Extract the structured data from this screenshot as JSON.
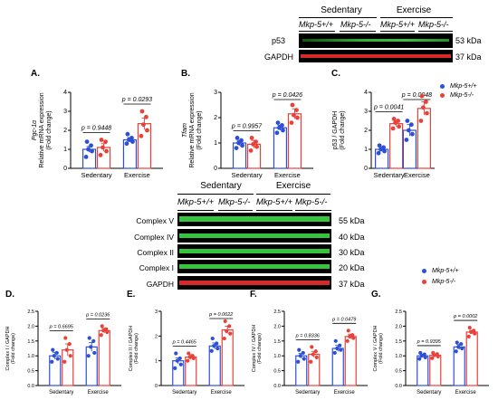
{
  "colors": {
    "sedentary_wt": "#2d4fd6",
    "sedentary_ko": "#e8413a",
    "exercise_wt": "#2d4fd6",
    "exercise_ko": "#e8413a",
    "band_green": "#35c43b",
    "band_red": "#d62a2a"
  },
  "blot_top": {
    "groups": [
      "Sedentary",
      "Exercise"
    ],
    "genotypes": [
      "Mkp-5+/+",
      "Mkp-5-/-",
      "Mkp-5+/+",
      "Mkp-5-/-"
    ],
    "rows": [
      {
        "label": "p53",
        "kda": "53 kDa",
        "color": "green"
      },
      {
        "label": "GAPDH",
        "kda": "37 kDa",
        "color": "red"
      }
    ]
  },
  "blot_mid": {
    "groups": [
      "Sedentary",
      "Exercise"
    ],
    "genotypes": [
      "Mkp-5+/+",
      "Mkp-5-/-",
      "Mkp-5+/+",
      "Mkp-5-/-"
    ],
    "rows": [
      {
        "label": "Complex V",
        "kda": "55 kDa",
        "color": "green"
      },
      {
        "label": "Complex IV",
        "kda": "40 kDa",
        "color": "green"
      },
      {
        "label": "Complex II",
        "kda": "30 kDa",
        "color": "green"
      },
      {
        "label": "Complex I",
        "kda": "20 kDa",
        "color": "green"
      },
      {
        "label": "GAPDH",
        "kda": "37 kDa",
        "color": "red"
      }
    ]
  },
  "legend_top": [
    "Mkp-5+/+",
    "Mkp-5-/-"
  ],
  "legend_mid": [
    "Mkp-5+/+",
    "Mkp-5-/-"
  ],
  "chart_data": [
    {
      "panel": "A.",
      "type": "bar",
      "categories": [
        "Sedentary",
        "Exercise"
      ],
      "ylabel_lines": [
        "Pgc-1α",
        "Relative mRNA expression",
        "(Fold change)"
      ],
      "ylim": [
        0,
        4
      ],
      "yticks": [
        0,
        1,
        2,
        3,
        4
      ],
      "pvalues": [
        "p = 0.9448",
        "p = 0.0293"
      ],
      "series": [
        {
          "name": "Mkp-5+/+",
          "values": [
            1.0,
            1.5
          ],
          "errors": [
            0.15,
            0.12
          ],
          "points": [
            [
              0.6,
              0.9,
              1.0,
              1.2,
              1.4
            ],
            [
              1.3,
              1.4,
              1.5,
              1.6,
              1.8
            ]
          ]
        },
        {
          "name": "Mkp-5-/-",
          "values": [
            1.1,
            2.35
          ],
          "errors": [
            0.2,
            0.3
          ],
          "points": [
            [
              0.7,
              0.9,
              1.1,
              1.4,
              1.5
            ],
            [
              1.7,
              2.0,
              2.3,
              2.7,
              3.0
            ]
          ]
        }
      ]
    },
    {
      "panel": "B.",
      "type": "bar",
      "categories": [
        "Sedentary",
        "Exercise"
      ],
      "ylabel_lines": [
        "Tfam",
        "Relative mRNA expression",
        "(Fold change)"
      ],
      "ylim": [
        0,
        3
      ],
      "yticks": [
        0,
        1,
        2,
        3
      ],
      "pvalues": [
        "p = 0.9957",
        "p = 0.0426"
      ],
      "series": [
        {
          "name": "Mkp-5+/+",
          "values": [
            1.0,
            1.6
          ],
          "errors": [
            0.1,
            0.1
          ],
          "points": [
            [
              0.8,
              0.9,
              1.0,
              1.1,
              1.2
            ],
            [
              1.4,
              1.5,
              1.6,
              1.7,
              1.8
            ]
          ]
        },
        {
          "name": "Mkp-5-/-",
          "values": [
            0.95,
            2.15
          ],
          "errors": [
            0.15,
            0.2
          ],
          "points": [
            [
              0.7,
              0.85,
              0.95,
              1.05,
              1.2
            ],
            [
              1.8,
              2.0,
              2.1,
              2.3,
              2.5
            ]
          ]
        }
      ]
    },
    {
      "panel": "C.",
      "type": "bar",
      "categories": [
        "Sedentary",
        "Exercise"
      ],
      "ylabel_lines": [
        "p53 / GAPDH",
        "(Fold change)"
      ],
      "ylim": [
        0,
        4
      ],
      "yticks": [
        0,
        1,
        2,
        3,
        4
      ],
      "pvalues": [
        "p = 0.0041",
        "p = 0.0048"
      ],
      "series": [
        {
          "name": "Mkp-5+/+",
          "values": [
            1.0,
            2.0
          ],
          "errors": [
            0.1,
            0.3
          ],
          "points": [
            [
              0.8,
              0.9,
              1.0,
              1.1,
              1.2
            ],
            [
              1.5,
              1.8,
              2.0,
              2.3,
              2.5
            ]
          ]
        },
        {
          "name": "Mkp-5-/-",
          "values": [
            2.35,
            3.15
          ],
          "errors": [
            0.15,
            0.35
          ],
          "points": [
            [
              2.1,
              2.2,
              2.4,
              2.5,
              2.6
            ],
            [
              2.5,
              2.9,
              3.2,
              3.5,
              3.8
            ]
          ]
        }
      ]
    },
    {
      "panel": "D.",
      "type": "bar",
      "categories": [
        "Sedentary",
        "Exercise"
      ],
      "ylabel_lines": [
        "Complex I / GAPDH",
        "(Fold change)"
      ],
      "ylim": [
        0,
        2.5
      ],
      "yticks": [
        0,
        0.5,
        1,
        1.5,
        2,
        2.5
      ],
      "yticklabels": [
        "0.0",
        "0.5",
        "1.0",
        "1.5",
        "2.0",
        "2.5"
      ],
      "pvalues": [
        "p = 0.6695",
        "p = 0.0236"
      ],
      "series": [
        {
          "name": "Mkp-5+/+",
          "values": [
            1.0,
            1.3
          ],
          "errors": [
            0.12,
            0.15
          ],
          "points": [
            [
              0.8,
              0.9,
              1.0,
              1.1,
              1.2
            ],
            [
              1.0,
              1.1,
              1.3,
              1.5,
              1.6
            ]
          ]
        },
        {
          "name": "Mkp-5-/-",
          "values": [
            1.2,
            1.85
          ],
          "errors": [
            0.2,
            0.08
          ],
          "points": [
            [
              0.8,
              1.0,
              1.2,
              1.4,
              1.6
            ],
            [
              1.7,
              1.8,
              1.85,
              1.9,
              2.0
            ]
          ]
        }
      ]
    },
    {
      "panel": "E.",
      "type": "bar",
      "categories": [
        "Sedentary",
        "Exercise"
      ],
      "ylabel_lines": [
        "Complex II / GAPDH",
        "(Fold change)"
      ],
      "ylim": [
        0,
        3
      ],
      "yticks": [
        0,
        1,
        2,
        3
      ],
      "pvalues": [
        "p = 0.4465",
        "p = 0.0022"
      ],
      "series": [
        {
          "name": "Mkp-5+/+",
          "values": [
            1.0,
            1.6
          ],
          "errors": [
            0.12,
            0.12
          ],
          "points": [
            [
              0.7,
              0.85,
              1.0,
              1.1,
              1.3
            ],
            [
              1.4,
              1.5,
              1.6,
              1.7,
              1.9
            ]
          ]
        },
        {
          "name": "Mkp-5-/-",
          "values": [
            1.15,
            2.25
          ],
          "errors": [
            0.1,
            0.15
          ],
          "points": [
            [
              1.0,
              1.1,
              1.15,
              1.2,
              1.3
            ],
            [
              1.9,
              2.1,
              2.2,
              2.4,
              2.6
            ]
          ]
        }
      ]
    },
    {
      "panel": "F.",
      "type": "bar",
      "categories": [
        "Sedentary",
        "Exercise"
      ],
      "ylabel_lines": [
        "Complex IV / GAPDH",
        "(Fold change)"
      ],
      "ylim": [
        0,
        2.5
      ],
      "yticks": [
        0,
        0.5,
        1,
        1.5,
        2,
        2.5
      ],
      "yticklabels": [
        "0.0",
        "0.5",
        "1.0",
        "1.5",
        "2.0",
        "2.5"
      ],
      "pvalues": [
        "p = 0.8336",
        "p = 0.0479"
      ],
      "series": [
        {
          "name": "Mkp-5+/+",
          "values": [
            1.0,
            1.25
          ],
          "errors": [
            0.08,
            0.1
          ],
          "points": [
            [
              0.8,
              0.9,
              1.0,
              1.1,
              1.2
            ],
            [
              1.1,
              1.2,
              1.25,
              1.35,
              1.5
            ]
          ]
        },
        {
          "name": "Mkp-5-/-",
          "values": [
            1.05,
            1.65
          ],
          "errors": [
            0.1,
            0.08
          ],
          "points": [
            [
              0.8,
              0.95,
              1.05,
              1.15,
              1.3
            ],
            [
              1.5,
              1.6,
              1.65,
              1.7,
              1.85
            ]
          ]
        }
      ]
    },
    {
      "panel": "G.",
      "type": "bar",
      "categories": [
        "Sedentary",
        "Exercise"
      ],
      "ylabel_lines": [
        "Complex V / GAPDH",
        "(Fold change)"
      ],
      "ylim": [
        0,
        2.5
      ],
      "yticks": [
        0,
        0.5,
        1,
        1.5,
        2,
        2.5
      ],
      "yticklabels": [
        "0.0",
        "0.5",
        "1.0",
        "1.5",
        "2.0",
        "2.5"
      ],
      "pvalues": [
        "p = 0.9395",
        "p = 0.0002"
      ],
      "series": [
        {
          "name": "Mkp-5+/+",
          "values": [
            1.0,
            1.3
          ],
          "errors": [
            0.05,
            0.08
          ],
          "points": [
            [
              0.9,
              0.95,
              1.0,
              1.05,
              1.1
            ],
            [
              1.15,
              1.25,
              1.3,
              1.4,
              1.45
            ]
          ]
        },
        {
          "name": "Mkp-5-/-",
          "values": [
            1.02,
            1.8
          ],
          "errors": [
            0.04,
            0.06
          ],
          "points": [
            [
              0.92,
              0.98,
              1.02,
              1.06,
              1.1
            ],
            [
              1.65,
              1.75,
              1.8,
              1.85,
              1.95
            ]
          ]
        }
      ]
    }
  ]
}
